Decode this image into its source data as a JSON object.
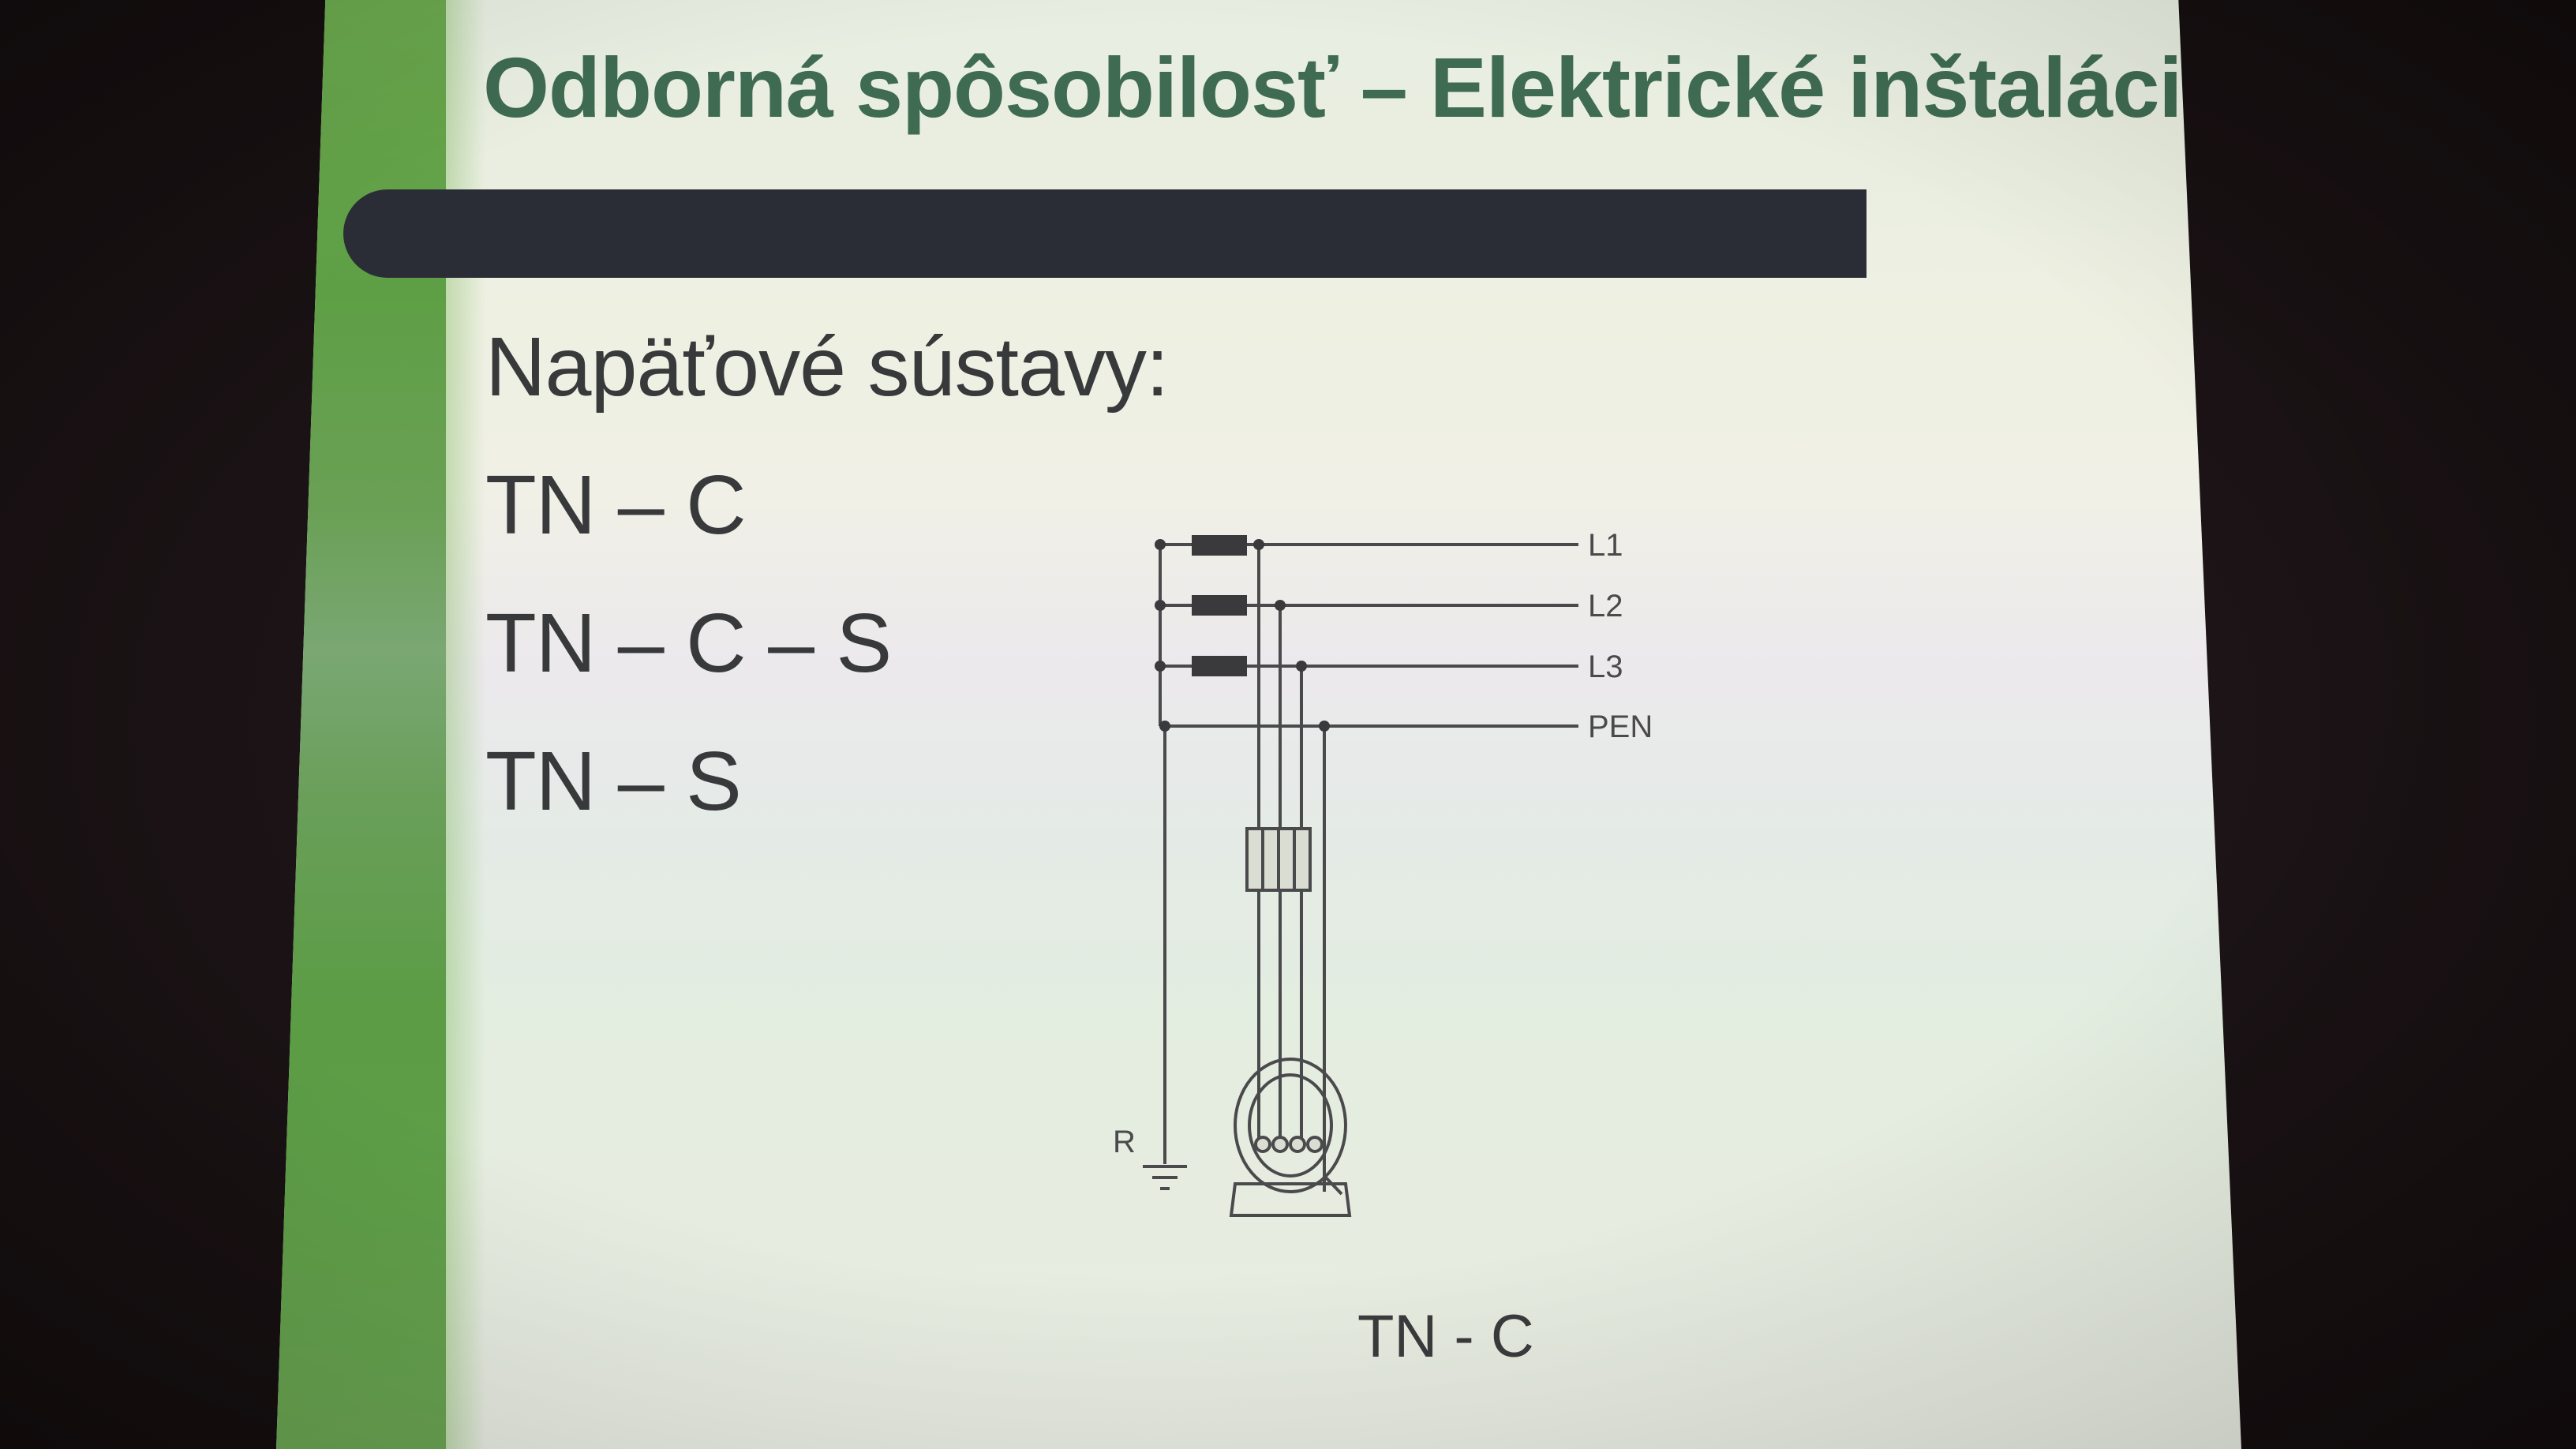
{
  "slide": {
    "title": "Odborná spôsobilosť – Elektrické inštalácie",
    "subtitle": "Napäťové sústavy:",
    "items": [
      {
        "label": "TN – C"
      },
      {
        "label": "TN – C – S"
      },
      {
        "label": "TN – S"
      }
    ]
  },
  "diagram": {
    "lines": [
      {
        "label": "L1"
      },
      {
        "label": "L2"
      },
      {
        "label": "L3"
      },
      {
        "label": "PEN"
      }
    ],
    "earth_label": "R",
    "caption": "TN - C"
  },
  "colors": {
    "title": "#3f6b52",
    "band": "#5e9f45",
    "bar": "#2b2d36",
    "text": "#37393b",
    "wire": "#4a4a4c"
  }
}
